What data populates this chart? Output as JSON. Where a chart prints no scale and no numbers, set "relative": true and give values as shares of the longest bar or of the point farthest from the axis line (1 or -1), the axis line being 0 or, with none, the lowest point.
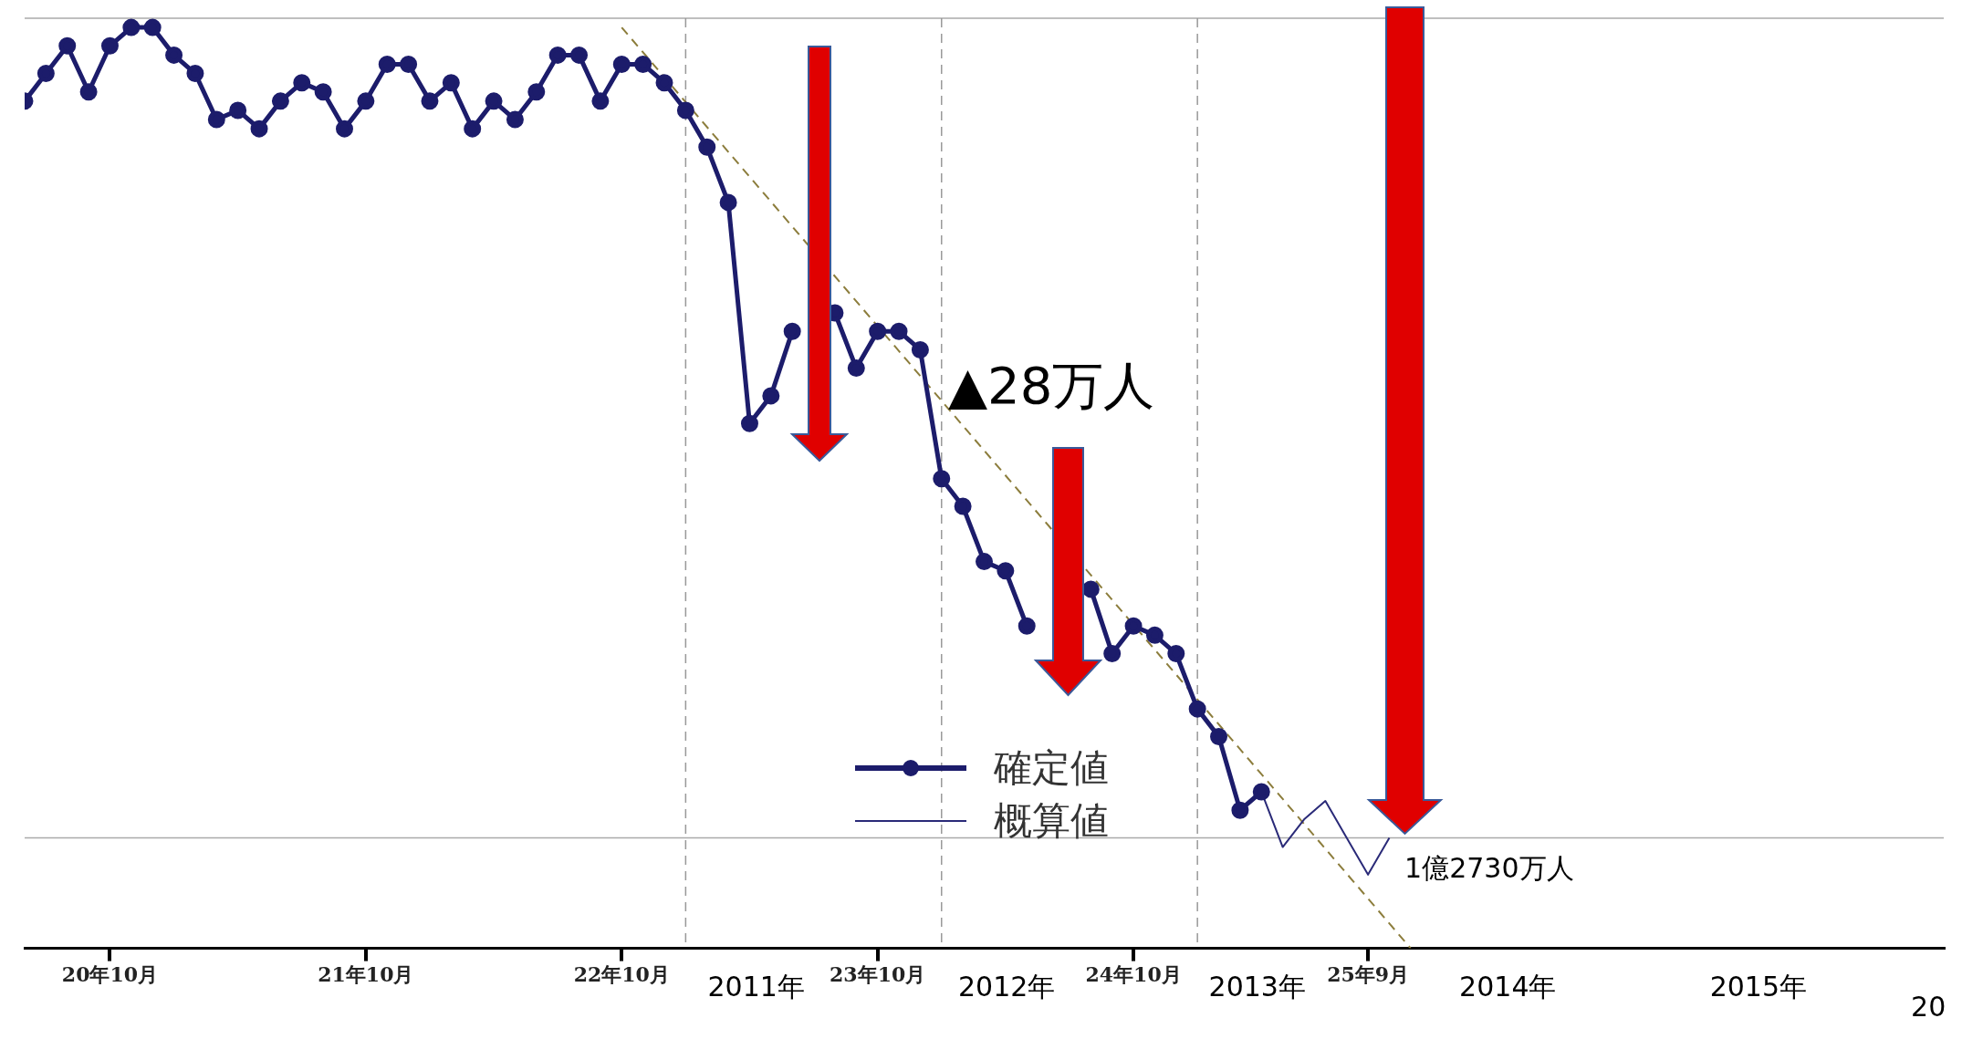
{
  "chart_data": {
    "type": "line",
    "relative": true,
    "xlim": [
      "2008-06",
      "2015-12"
    ],
    "xticks": [
      {
        "value": "2008-10",
        "label": "20年10月"
      },
      {
        "value": "2009-10",
        "label": "21年10月"
      },
      {
        "value": "2010-10",
        "label": "22年10月"
      },
      {
        "value": "2011-10",
        "label": "23年10月"
      },
      {
        "value": "2012-10",
        "label": "24年10月"
      },
      {
        "value": "2013-09",
        "label": "25年9月"
      }
    ],
    "x2lim": [
      2008.08,
      2015.74
    ],
    "x2ticks": [
      {
        "value": 2011,
        "label": "2011年"
      },
      {
        "value": 2012,
        "label": "2012年"
      },
      {
        "value": 2013,
        "label": "2013年"
      },
      {
        "value": 2014,
        "label": "2014年"
      },
      {
        "value": 2015,
        "label": "2015年"
      }
    ],
    "grid": false,
    "legend": "bottom",
    "series": [
      {
        "name": "確定値",
        "color": "#1c1c6b",
        "marker": "circle",
        "line_style": "solid",
        "x": [
          "2008-06",
          "2008-07",
          "2008-08",
          "2008-09",
          "2008-10",
          "2008-11",
          "2008-12",
          "2009-01",
          "2009-02",
          "2009-03",
          "2009-04",
          "2009-05",
          "2009-06",
          "2009-07",
          "2009-08",
          "2009-09",
          "2009-10",
          "2009-11",
          "2009-12",
          "2010-01",
          "2010-02",
          "2010-03",
          "2010-04",
          "2010-05",
          "2010-06",
          "2010-07",
          "2010-08",
          "2010-09",
          "2010-10",
          "2010-11",
          "2010-12",
          "2011-01",
          "2011-02",
          "2011-03",
          "2011-04",
          "2011-05",
          "2011-06",
          "2011-07",
          "2011-08",
          "2011-09",
          "2011-10",
          "2011-11",
          "2011-12",
          "2012-01",
          "2012-02",
          "2012-03",
          "2012-04",
          "2012-05",
          "2012-06",
          "2012-07",
          "2012-08",
          "2012-09",
          "2012-10",
          "2012-11",
          "2012-12",
          "2013-01",
          "2013-02",
          "2013-03",
          "2013-04"
        ],
        "values": [
          0.92,
          0.95,
          0.98,
          0.93,
          0.98,
          1.0,
          1.0,
          0.97,
          0.95,
          0.9,
          0.91,
          0.89,
          0.92,
          0.94,
          0.93,
          0.89,
          0.92,
          0.96,
          0.96,
          0.92,
          0.94,
          0.89,
          0.92,
          0.9,
          0.93,
          0.97,
          0.97,
          0.92,
          0.96,
          0.96,
          0.94,
          0.91,
          0.87,
          0.81,
          0.57,
          0.6,
          0.67,
          null,
          0.69,
          0.63,
          0.67,
          0.67,
          0.65,
          0.51,
          0.48,
          0.42,
          0.41,
          0.35,
          null,
          null,
          0.39,
          0.32,
          0.35,
          0.34,
          0.32,
          0.26,
          0.23,
          0.15,
          0.17
        ]
      },
      {
        "name": "概算値",
        "color": "#2a2a78",
        "marker": "none",
        "line_style": "solid",
        "x": [
          "2013-04",
          "2013-05",
          "2013-06",
          "2013-07",
          "2013-08",
          "2013-09",
          "2013-10"
        ],
        "values": [
          0.17,
          0.11,
          0.14,
          0.16,
          0.12,
          0.08,
          0.12
        ]
      },
      {
        "type": "line",
        "color": "#8c7d3c",
        "marker": "none",
        "line_style": "dashed",
        "x": [
          "2010-10",
          "2013-11"
        ],
        "values": [
          1.0,
          0
        ]
      }
    ],
    "ref_lines": [
      {
        "axis": "y",
        "value": 1.01,
        "color": "#aaaaaa",
        "line_style": "solid"
      },
      {
        "axis": "y",
        "value": 0.12,
        "color": "#aaaaaa",
        "line_style": "solid"
      },
      {
        "axis": "x",
        "value": "2011-01",
        "color": "#999999",
        "line_style": "dashed"
      },
      {
        "axis": "x",
        "value": "2012-01",
        "color": "#999999",
        "line_style": "dashed"
      },
      {
        "axis": "x",
        "value": "2013-01",
        "color": "#999999",
        "line_style": "dashed"
      }
    ],
    "annotations": [
      "▲28万人",
      "20",
      {
        "text": "1億2730万人",
        "x": "2013-09",
        "y": 0.08
      }
    ]
  }
}
